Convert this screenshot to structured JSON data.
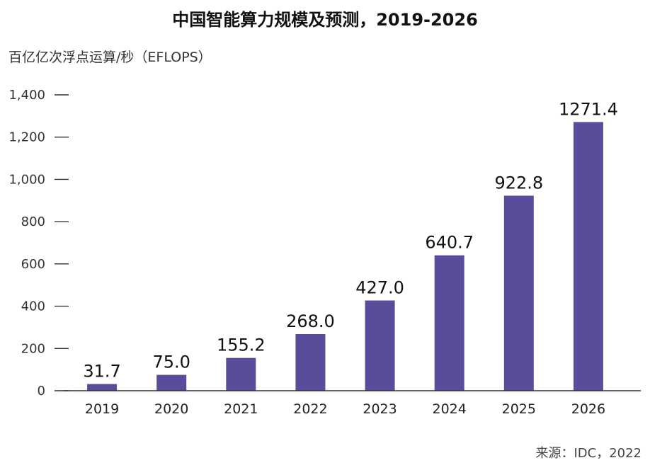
{
  "chart_data": {
    "type": "bar",
    "title": "中国智能算力规模及预测，2019-2026",
    "ylabel": "百亿亿次浮点运算/秒（EFLOPS）",
    "xlabel": "",
    "categories": [
      "2019",
      "2020",
      "2021",
      "2022",
      "2023",
      "2024",
      "2025",
      "2026"
    ],
    "values": [
      31.7,
      75.0,
      155.2,
      268.0,
      427.0,
      640.7,
      922.8,
      1271.4
    ],
    "value_labels": [
      "31.7",
      "75.0",
      "155.2",
      "268.0",
      "427.0",
      "640.7",
      "922.8",
      "1271.4"
    ],
    "ylim": [
      0,
      1400
    ],
    "yticks": [
      0,
      200,
      400,
      600,
      800,
      1000,
      1200,
      1400
    ],
    "ytick_labels": [
      "0",
      "200",
      "400",
      "600",
      "800",
      "1,000",
      "1,200",
      "1,400"
    ],
    "grid": false,
    "bar_color": "#5b4b9b",
    "source": "来源：IDC，2022"
  }
}
